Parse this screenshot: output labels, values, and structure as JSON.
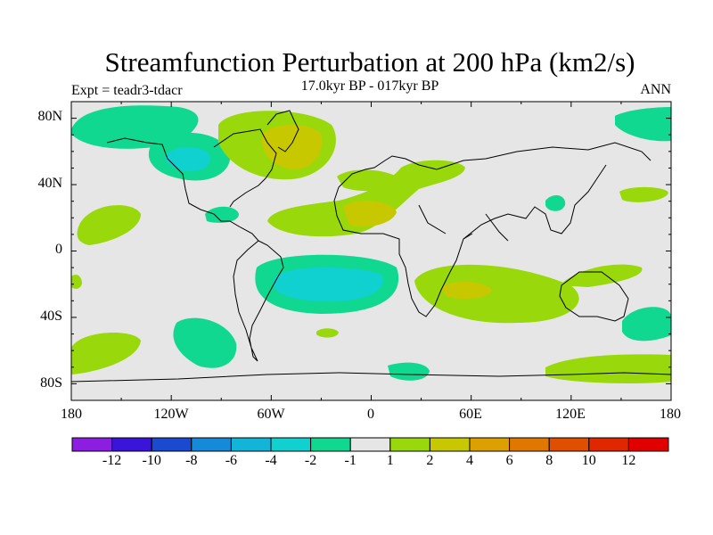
{
  "title": "Streamfunction Perturbation at 200 hPa (km2/s)",
  "experiment": "Expt = teadr3-tdacr",
  "period": "17.0kyr BP - 017kyr BP",
  "season": "ANN",
  "lat_labels": [
    "80N",
    "40N",
    "0",
    "40S",
    "80S"
  ],
  "lon_labels": [
    "180",
    "120W",
    "60W",
    "0",
    "60E",
    "120E",
    "180"
  ],
  "colorbar": {
    "labels": [
      "-12",
      "-10",
      "-8",
      "-6",
      "-4",
      "-2",
      "-1",
      "1",
      "2",
      "4",
      "6",
      "8",
      "10",
      "12"
    ],
    "colors": [
      "#8b1ee0",
      "#3a14d8",
      "#1a4ad0",
      "#148ad8",
      "#12b4d8",
      "#10d0d0",
      "#10d890",
      "#e6e6e6",
      "#99d80a",
      "#c8c800",
      "#dca000",
      "#e07800",
      "#e04e00",
      "#e02800",
      "#e00000"
    ]
  },
  "map_colors": {
    "background": "#e6e6e6",
    "level_neg1": "#10d890",
    "level_neg2": "#10d0d0",
    "level_pos1": "#99d80a",
    "level_pos2": "#c8c800"
  }
}
